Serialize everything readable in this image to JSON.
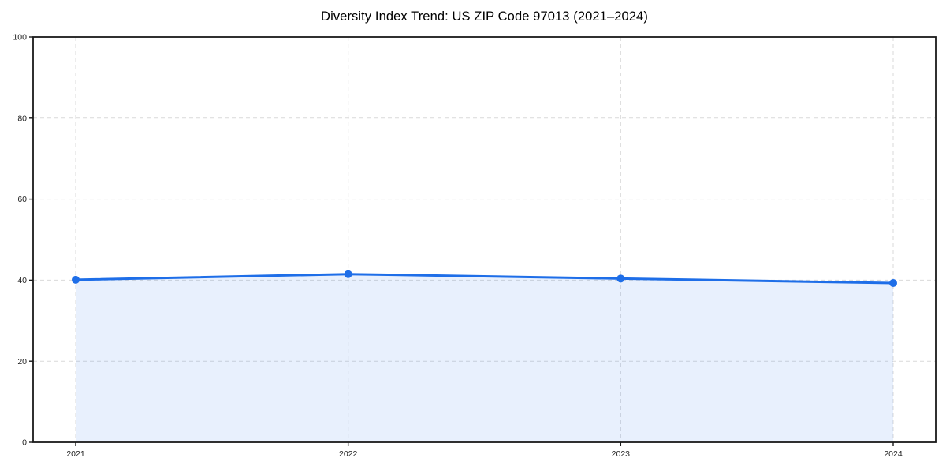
{
  "page": {
    "background_color": "#ffffff"
  },
  "chart_data": {
    "type": "area",
    "title": "Diversity Index Trend: US ZIP Code 97013 (2021–2024)",
    "categories": [
      "2021",
      "2022",
      "2023",
      "2024"
    ],
    "series": [
      {
        "name": "Diversity Index",
        "values": [
          40.1,
          41.5,
          40.4,
          39.3
        ]
      }
    ],
    "xlabel": "",
    "ylabel": "",
    "ylim": [
      0,
      100
    ],
    "yticks": [
      0,
      20,
      40,
      60,
      80,
      100
    ],
    "grid": true,
    "grid_style": "dashed",
    "legend": false,
    "line_color": "#1e6ee8",
    "marker_color": "#1e6ee8",
    "fill_color": "rgba(30,110,232,0.10)",
    "grid_color": "#d9d9d9",
    "axis_color": "#1a1a1a",
    "tick_label_color": "#222222"
  }
}
